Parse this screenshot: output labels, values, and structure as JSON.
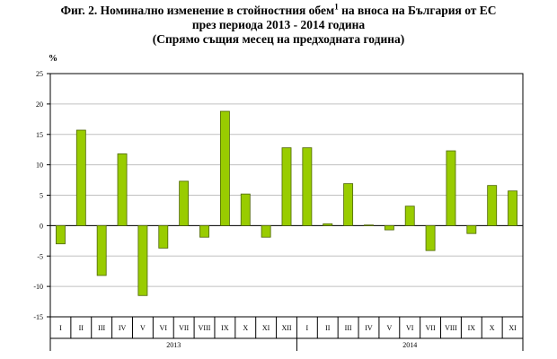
{
  "chart_data": {
    "type": "bar",
    "title_main": "Фиг. 2. Номинално изменение в стойностния обем",
    "title_sup": "1",
    "title_rest": " на вноса на България от ЕС",
    "title_line2": "през периода 2013 - 2014 година",
    "title_line3": "(Спрямо същия месец на предходната година)",
    "ylabel": "%",
    "ylim": [
      -15,
      25
    ],
    "yticks": [
      -15,
      -10,
      -5,
      0,
      5,
      10,
      15,
      20,
      25
    ],
    "grid": true,
    "categories": [
      "I",
      "II",
      "III",
      "IV",
      "V",
      "VI",
      "VII",
      "VIII",
      "IX",
      "X",
      "XI",
      "XII",
      "I",
      "II",
      "III",
      "IV",
      "V",
      "VI",
      "VII",
      "VIII",
      "IX",
      "X",
      "XI"
    ],
    "groups": [
      {
        "label": "2013",
        "count": 12
      },
      {
        "label": "2014",
        "count": 11
      }
    ],
    "series": [
      {
        "values": [
          -3.0,
          15.7,
          -8.2,
          11.8,
          -11.5,
          -3.7,
          7.3,
          -1.9,
          18.8,
          5.2,
          -1.9,
          12.8,
          12.8,
          0.3,
          6.9,
          0.1,
          -0.7,
          3.2,
          -4.1,
          12.3,
          -1.3,
          6.6,
          5.7
        ]
      }
    ],
    "colors": {
      "bar_fill": "#99cc00",
      "bar_stroke": "#4d6600",
      "grid": "#c0c0c0",
      "axis": "#000000"
    }
  }
}
